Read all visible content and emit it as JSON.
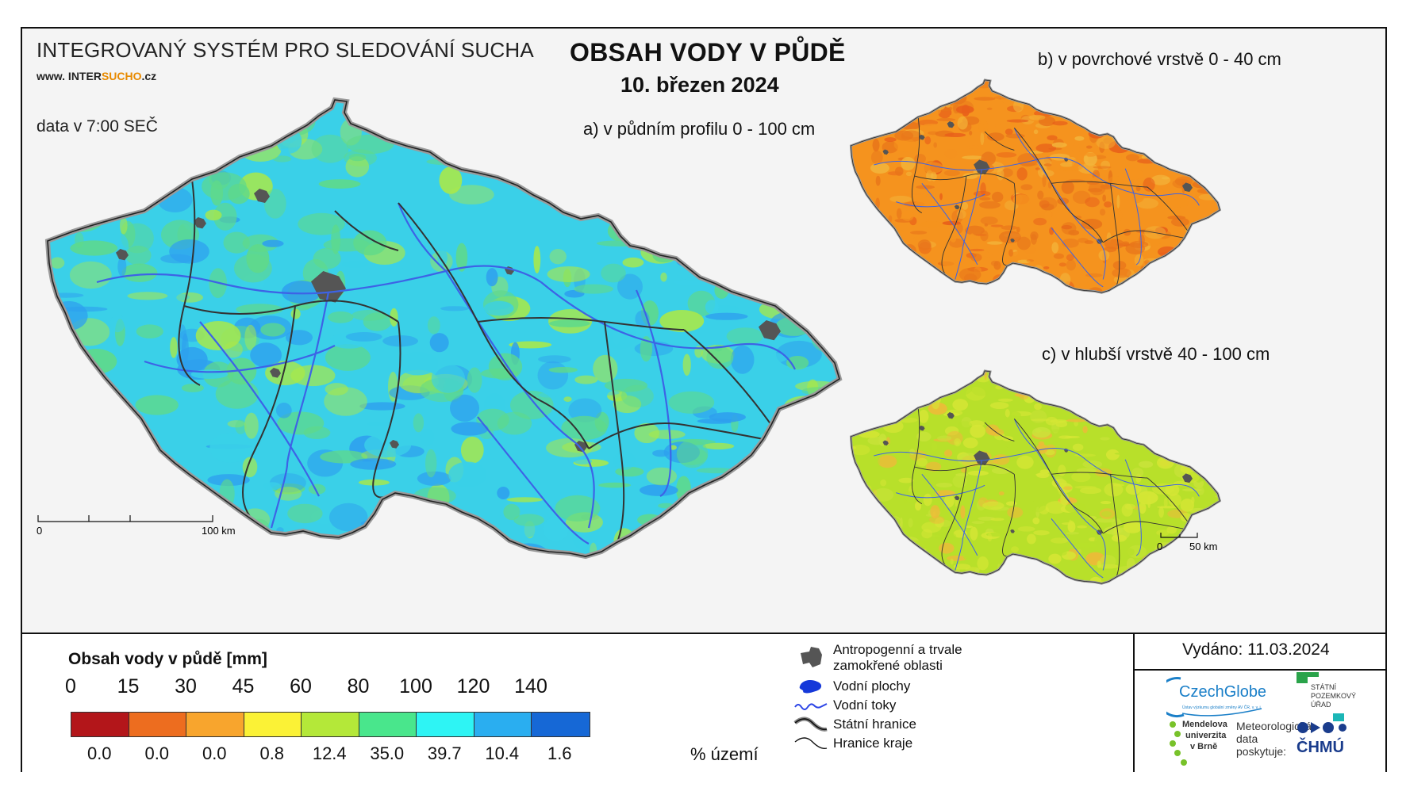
{
  "header": {
    "system_title": "INTEGROVANÝ SYSTÉM PRO SLEDOVÁNÍ SUCHA",
    "url_prefix": "www. INTER",
    "url_mid": "SUCHO",
    "url_suffix": ".cz",
    "data_time": "data v 7:00 SEČ",
    "main_title": "OBSAH VODY V PŮDĚ",
    "main_date": "10. březen 2024"
  },
  "maps": {
    "a_label": "a) v půdním profilu 0 - 100 cm",
    "b_label": "b) v povrchové vrstvě 0 - 40 cm",
    "c_label": "c) v hlubší vrstvě 40 - 100 cm",
    "colors": {
      "a_base": "#3ad0e8",
      "a_secondary": "#5fd98a",
      "a_light": "#a8e84a",
      "a_deep": "#2ea0ee",
      "b_base": "#f5931e",
      "b_secondary": "#e8751a",
      "b_light": "#f3b43a",
      "b_deep": "#e85e1a",
      "c_base": "#b8e02a",
      "c_secondary": "#d6e635",
      "c_light": "#c9e33a",
      "c_deep": "#f0b83a",
      "urban": "#555555",
      "rivers": "#3d63e6",
      "borders": "#333333"
    }
  },
  "scale_bars": {
    "main": {
      "start": "0",
      "end": "100 km"
    },
    "small": {
      "start": "0",
      "end": "50 km"
    }
  },
  "legend": {
    "title": "Obsah vody v půdě  [mm]",
    "ticks": [
      "0",
      "15",
      "30",
      "45",
      "60",
      "80",
      "100",
      "120",
      "140"
    ],
    "classes": [
      {
        "color": "#b3161a",
        "percent": "0.0"
      },
      {
        "color": "#ed6d1f",
        "percent": "0.0"
      },
      {
        "color": "#f8a52d",
        "percent": "0.0"
      },
      {
        "color": "#fbf236",
        "percent": "0.8"
      },
      {
        "color": "#b4e839",
        "percent": "12.4"
      },
      {
        "color": "#49e68c",
        "percent": "35.0"
      },
      {
        "color": "#2ef4f4",
        "percent": "39.7"
      },
      {
        "color": "#2aaef0",
        "percent": "10.4"
      },
      {
        "color": "#1668d6",
        "percent": "1.6"
      }
    ],
    "percent_unit": "% území",
    "symbols": {
      "urban": "Antropogenní a trvale zamokřené oblasti",
      "urban_line1": "Antropogenní a trvale",
      "urban_line2": "zamokřené oblasti",
      "water_areas": "Vodní plochy",
      "rivers": "Vodní toky",
      "state_border": "Státní hranice",
      "region_border": "Hranice kraje"
    }
  },
  "issued": "Vydáno: 11.03.2024",
  "logos": {
    "czechglobe": "CzechGlobe",
    "czechglobe_sub": "Ústav výzkumu globální změny AV ČR, v. v. i.",
    "spu_line1": "STÁTNÍ",
    "spu_line2": "POZEMKOVÝ",
    "spu_line3": "ÚŘAD",
    "mendel_line1": "Mendelova",
    "mendel_line2": "univerzita",
    "mendel_line3": "v Brně",
    "meteo_line1": "Meteorologická",
    "meteo_line2": "data",
    "meteo_line3": "poskytuje:",
    "chmu": "ČHMÚ"
  }
}
